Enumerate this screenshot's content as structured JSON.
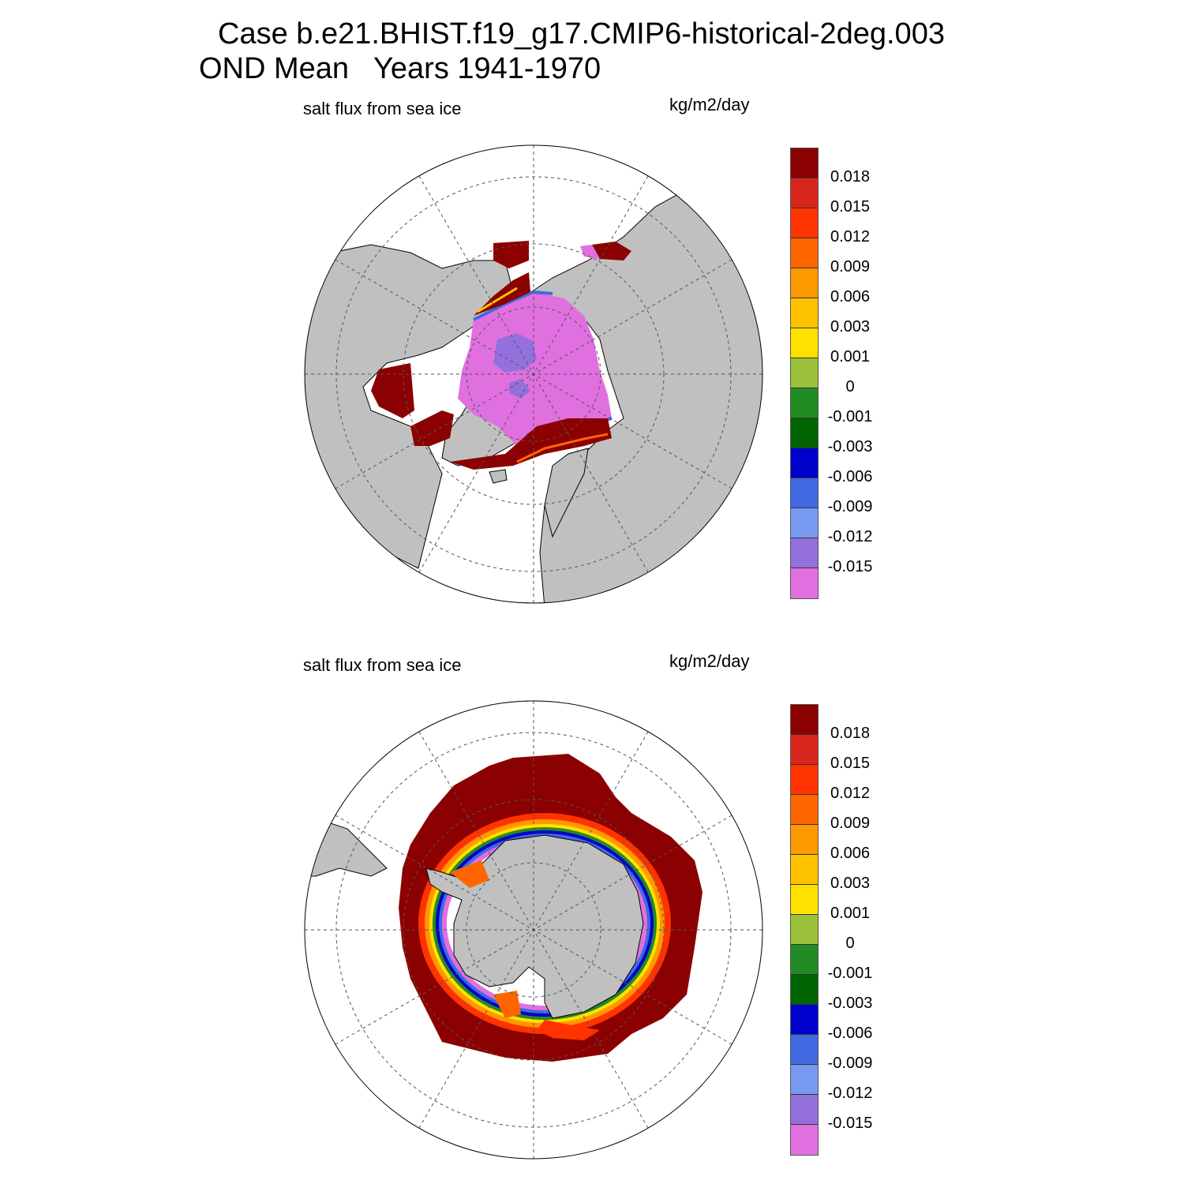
{
  "title": {
    "line1": "Case b.e21.BHIST.f19_g17.CMIP6-historical-2deg.003",
    "line2": "OND Mean   Years 1941-1970"
  },
  "panels": [
    {
      "hemisphere": "north",
      "left_label": "salt flux from sea ice",
      "right_label": "kg/m2/day"
    },
    {
      "hemisphere": "south",
      "left_label": "salt flux from sea ice",
      "right_label": "kg/m2/day"
    }
  ],
  "colorbar": {
    "colors": [
      "#8b0000",
      "#d9261c",
      "#ff3300",
      "#ff6600",
      "#ff9900",
      "#ffc200",
      "#ffe100",
      "#9ac139",
      "#238b23",
      "#006400",
      "#0000cd",
      "#4169e1",
      "#7899f0",
      "#9370db",
      "#e070e0"
    ],
    "tick_labels": [
      "0.018",
      "0.015",
      "0.012",
      "0.009",
      "0.006",
      "0.003",
      "0.001",
      "0",
      "-0.001",
      "-0.003",
      "-0.006",
      "-0.009",
      "-0.012",
      "-0.015"
    ]
  },
  "map_colors": {
    "land": "#c0c0c0",
    "ocean": "#ffffff",
    "grid": "#555555"
  }
}
